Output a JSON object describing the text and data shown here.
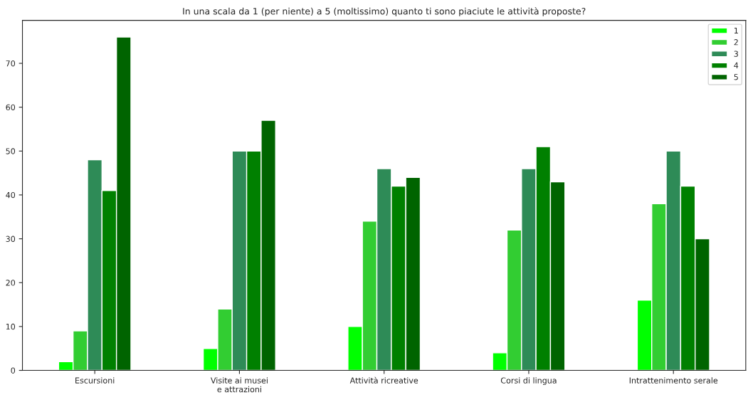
{
  "chart_data": {
    "type": "bar",
    "title": "In una scala da 1 (per niente) a 5 (moltissimo) quanto ti sono piaciute le attività proposte?",
    "categories": [
      "Escursioni",
      "Visite ai musei\ne attrazioni",
      "Attività ricreative",
      "Corsi di lingua",
      "Intrattenimento serale"
    ],
    "series": [
      {
        "name": "1",
        "color": "#00ff00",
        "values": [
          2,
          5,
          10,
          4,
          16
        ]
      },
      {
        "name": "2",
        "color": "#32cd32",
        "values": [
          9,
          14,
          34,
          32,
          38
        ]
      },
      {
        "name": "3",
        "color": "#2e8b57",
        "values": [
          48,
          50,
          46,
          46,
          50
        ]
      },
      {
        "name": "4",
        "color": "#008000",
        "values": [
          41,
          50,
          42,
          51,
          42
        ]
      },
      {
        "name": "5",
        "color": "#006400",
        "values": [
          76,
          57,
          44,
          43,
          30
        ]
      }
    ],
    "ylim": [
      0,
      79.8
    ],
    "yticks": [
      0,
      10,
      20,
      30,
      40,
      50,
      60,
      70
    ],
    "grid": false,
    "legend": "top right"
  }
}
